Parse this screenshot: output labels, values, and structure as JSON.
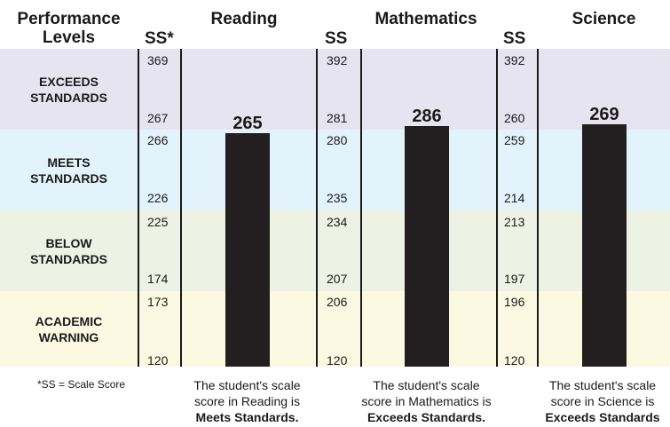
{
  "headers": {
    "performance_line1": "Performance",
    "performance_line2": "Levels",
    "ss_first": "SS*",
    "ss": "SS"
  },
  "bands": [
    {
      "line1": "EXCEEDS",
      "line2": "STANDARDS",
      "color": "#e6e4f0"
    },
    {
      "line1": "MEETS",
      "line2": "STANDARDS",
      "color": "#e3f3fb"
    },
    {
      "line1": "BELOW",
      "line2": "STANDARDS",
      "color": "#edf2e4"
    },
    {
      "line1": "ACADEMIC",
      "line2": "WARNING",
      "color": "#fcf9e3"
    }
  ],
  "footnote": "*SS = Scale Score",
  "chart_data": {
    "type": "bar",
    "bar_color": "#231f20",
    "subjects": [
      {
        "name": "Reading",
        "score": 265,
        "ticks": [
          [
            "369",
            "267"
          ],
          [
            "266",
            "226"
          ],
          [
            "225",
            "174"
          ],
          [
            "173",
            "120"
          ]
        ],
        "bands": [
          [
            267,
            369
          ],
          [
            226,
            266
          ],
          [
            174,
            225
          ],
          [
            120,
            173
          ]
        ],
        "caption_line1": "The student's scale",
        "caption_line2": "score in Reading is",
        "caption_level": "Meets Standards."
      },
      {
        "name": "Mathematics",
        "score": 286,
        "ticks": [
          [
            "392",
            "281"
          ],
          [
            "280",
            "235"
          ],
          [
            "234",
            "207"
          ],
          [
            "206",
            "120"
          ]
        ],
        "bands": [
          [
            281,
            392
          ],
          [
            235,
            280
          ],
          [
            207,
            234
          ],
          [
            120,
            206
          ]
        ],
        "caption_line1": "The student's scale",
        "caption_line2": "score in Mathematics is",
        "caption_level": "Exceeds Standards."
      },
      {
        "name": "Science",
        "score": 269,
        "ticks": [
          [
            "392",
            "260"
          ],
          [
            "259",
            "214"
          ],
          [
            "213",
            "197"
          ],
          [
            "196",
            "120"
          ]
        ],
        "bands": [
          [
            260,
            392
          ],
          [
            214,
            259
          ],
          [
            197,
            213
          ],
          [
            120,
            196
          ]
        ],
        "caption_line1": "The student's scale",
        "caption_line2": "score in Science is",
        "caption_level": "Exceeds Standards"
      }
    ]
  }
}
